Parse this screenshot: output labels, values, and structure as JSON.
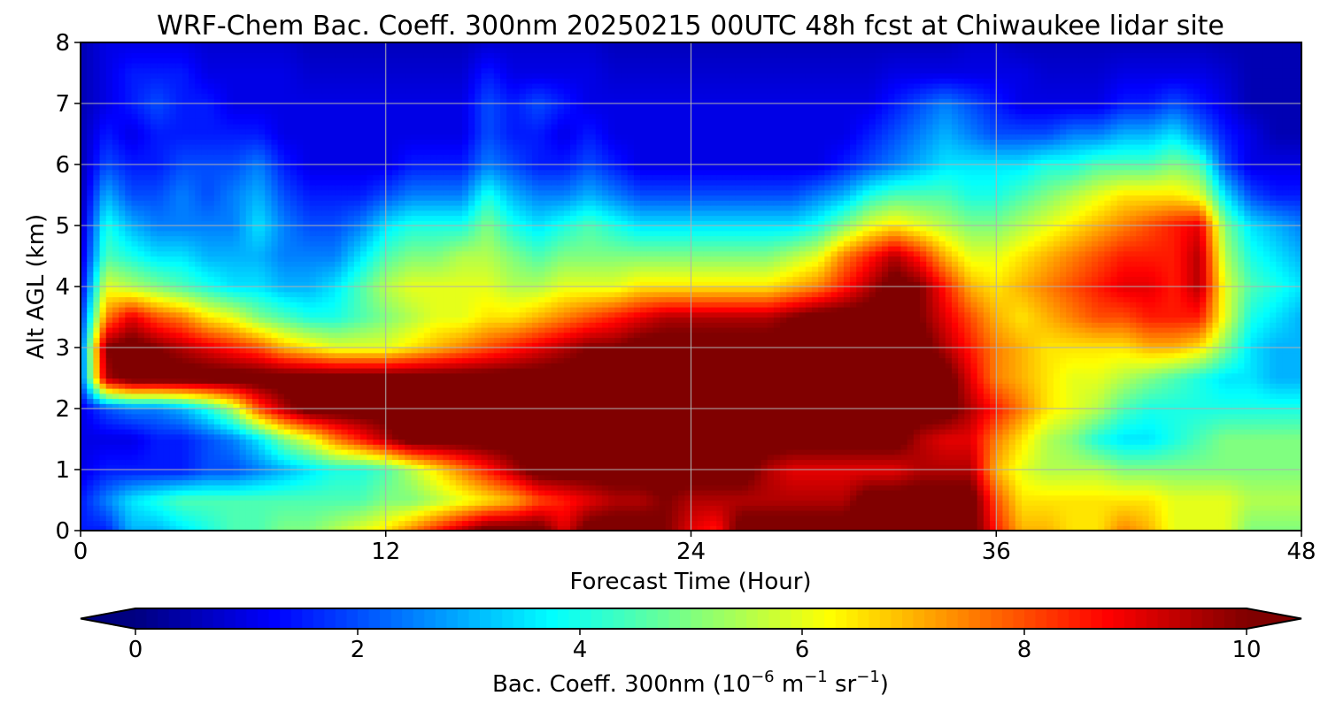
{
  "chart_data": {
    "type": "heatmap",
    "title": "WRF-Chem Bac. Coeff. 300nm  20250215 00UTC 48h fcst at Chiwaukee lidar site",
    "xlabel": "Forecast Time (Hour)",
    "ylabel": "Alt AGL (km)",
    "xlim": [
      0,
      48
    ],
    "ylim": [
      0,
      8
    ],
    "x_ticks": [
      "0",
      "12",
      "24",
      "36",
      "48"
    ],
    "x_tick_values": [
      0,
      12,
      24,
      36,
      48
    ],
    "y_ticks": [
      "0",
      "1",
      "2",
      "3",
      "4",
      "5",
      "6",
      "7",
      "8"
    ],
    "y_tick_values": [
      0,
      1,
      2,
      3,
      4,
      5,
      6,
      7,
      8
    ],
    "grid": true,
    "colormap": "jet",
    "colorbar": {
      "label_main": "Bac. Coeff. 300nm  (10",
      "label_exp1": "−6",
      "label_mid": " m",
      "label_exp2": "−1",
      "label_mid2": " sr",
      "label_exp3": "−1",
      "label_end": ")",
      "range": [
        0,
        10
      ],
      "extend": "both",
      "ticks": [
        "0",
        "2",
        "4",
        "6",
        "8",
        "10"
      ],
      "tick_values": [
        0,
        2,
        4,
        6,
        8,
        10
      ]
    },
    "x": [
      0,
      1,
      2,
      3,
      4,
      5,
      6,
      7,
      8,
      9,
      10,
      11,
      12,
      13,
      14,
      15,
      16,
      17,
      18,
      19,
      20,
      21,
      22,
      23,
      24,
      25,
      26,
      27,
      28,
      29,
      30,
      31,
      32,
      33,
      34,
      35,
      36,
      37,
      38,
      39,
      40,
      41,
      42,
      43,
      44,
      45,
      46,
      47,
      48
    ],
    "y": [
      0.0,
      0.5,
      1.0,
      1.5,
      2.0,
      2.5,
      3.0,
      3.5,
      4.0,
      4.5,
      5.0,
      5.5,
      6.0,
      6.5,
      7.0,
      7.5,
      8.0
    ],
    "z": [
      [
        1.5,
        1.5,
        3.0,
        3.0,
        3.5,
        4.0,
        4.5,
        4.5,
        5.0,
        5.0,
        5.5,
        6.0,
        6.5,
        7.5,
        8.5,
        9.5,
        10.5,
        10.5,
        10.5,
        9.0,
        10.5,
        10.5,
        10.5,
        10.0,
        9.0,
        8.5,
        10.5,
        10.5,
        10.5,
        10.5,
        10.5,
        10.5,
        10.5,
        10.5,
        10.5,
        10.5,
        8.5,
        7.0,
        7.0,
        6.5,
        6.5,
        7.5,
        7.0,
        6.0,
        6.0,
        6.0,
        5.0,
        5.0,
        5.0
      ],
      [
        1.5,
        2.5,
        3.5,
        4.0,
        4.5,
        4.5,
        4.5,
        4.5,
        4.5,
        4.5,
        4.5,
        4.5,
        5.0,
        5.0,
        5.5,
        6.0,
        6.5,
        7.0,
        8.0,
        8.5,
        9.0,
        9.5,
        9.5,
        10.0,
        9.5,
        9.5,
        9.5,
        9.5,
        9.5,
        9.5,
        9.5,
        10.5,
        10.5,
        10.5,
        10.5,
        10.5,
        8.0,
        6.5,
        6.5,
        6.5,
        6.5,
        6.5,
        6.5,
        6.0,
        6.0,
        6.0,
        5.5,
        5.5,
        5.5
      ],
      [
        1.0,
        1.5,
        1.5,
        1.5,
        1.5,
        2.0,
        2.0,
        2.5,
        3.0,
        3.5,
        4.0,
        4.0,
        4.5,
        5.5,
        6.5,
        7.5,
        8.5,
        9.5,
        10.5,
        10.5,
        10.5,
        10.5,
        10.5,
        10.5,
        10.5,
        10.5,
        10.5,
        9.5,
        9.0,
        9.0,
        9.0,
        9.0,
        9.0,
        9.5,
        9.5,
        9.5,
        7.0,
        6.0,
        5.5,
        5.5,
        5.5,
        5.0,
        5.0,
        5.0,
        5.0,
        5.0,
        5.0,
        5.0,
        5.0
      ],
      [
        1.0,
        1.0,
        1.0,
        1.5,
        1.5,
        2.0,
        2.5,
        3.5,
        5.0,
        6.0,
        7.5,
        8.5,
        9.5,
        10.5,
        10.5,
        10.5,
        10.5,
        10.5,
        10.5,
        10.5,
        10.5,
        10.5,
        10.5,
        10.5,
        10.5,
        10.5,
        10.5,
        10.5,
        10.5,
        10.5,
        10.5,
        10.5,
        10.5,
        9.5,
        9.0,
        9.0,
        7.5,
        6.5,
        5.5,
        5.0,
        4.0,
        3.5,
        3.5,
        4.0,
        4.5,
        5.0,
        5.0,
        5.0,
        5.0
      ],
      [
        1.0,
        2.0,
        2.5,
        2.5,
        3.0,
        4.0,
        5.5,
        8.0,
        9.5,
        10.5,
        10.5,
        10.5,
        10.5,
        10.5,
        10.5,
        10.5,
        10.5,
        10.5,
        10.5,
        10.5,
        10.5,
        10.5,
        10.5,
        10.5,
        10.5,
        10.5,
        10.5,
        10.5,
        10.5,
        10.5,
        10.5,
        10.5,
        10.5,
        10.5,
        10.5,
        9.5,
        8.5,
        7.5,
        6.5,
        6.0,
        5.5,
        4.5,
        4.0,
        4.0,
        4.0,
        4.0,
        4.0,
        4.0,
        4.0
      ],
      [
        2.0,
        9.5,
        10.5,
        10.5,
        10.5,
        10.5,
        10.5,
        10.5,
        10.5,
        10.5,
        10.5,
        10.5,
        10.5,
        10.5,
        10.5,
        10.5,
        10.5,
        10.5,
        10.5,
        10.5,
        10.5,
        10.5,
        10.5,
        10.5,
        10.5,
        10.5,
        10.5,
        10.5,
        10.5,
        10.5,
        10.5,
        10.5,
        10.5,
        10.5,
        10.5,
        9.0,
        7.5,
        7.0,
        6.5,
        6.0,
        6.0,
        5.5,
        5.0,
        4.5,
        4.0,
        3.5,
        3.5,
        3.0,
        3.0
      ],
      [
        2.0,
        10.0,
        10.5,
        10.0,
        9.5,
        9.0,
        8.5,
        8.0,
        7.0,
        6.5,
        6.0,
        6.0,
        6.0,
        6.5,
        7.0,
        7.5,
        8.0,
        8.5,
        9.0,
        9.5,
        10.0,
        10.0,
        10.5,
        10.5,
        10.5,
        10.5,
        10.5,
        10.5,
        10.5,
        10.5,
        10.5,
        10.5,
        10.5,
        10.5,
        9.5,
        8.5,
        7.5,
        7.0,
        6.5,
        6.5,
        6.5,
        6.5,
        7.0,
        7.0,
        6.5,
        5.0,
        3.5,
        3.0,
        3.0
      ],
      [
        1.5,
        7.5,
        9.0,
        8.0,
        7.5,
        6.5,
        6.0,
        5.0,
        4.5,
        4.0,
        4.0,
        4.5,
        5.0,
        5.5,
        6.0,
        6.0,
        6.5,
        6.5,
        7.0,
        7.5,
        8.0,
        8.5,
        9.0,
        9.5,
        9.5,
        9.5,
        9.5,
        9.5,
        10.0,
        10.5,
        10.5,
        10.5,
        10.5,
        10.0,
        9.0,
        8.0,
        7.0,
        6.5,
        7.0,
        7.5,
        8.0,
        8.0,
        8.5,
        8.5,
        8.5,
        6.0,
        4.0,
        3.5,
        3.0
      ],
      [
        1.0,
        6.0,
        5.5,
        5.0,
        4.5,
        4.0,
        3.5,
        3.5,
        3.0,
        3.0,
        3.5,
        4.5,
        5.5,
        6.0,
        6.0,
        6.0,
        6.0,
        5.5,
        5.5,
        6.0,
        6.0,
        6.0,
        6.5,
        6.5,
        6.5,
        6.5,
        6.5,
        6.5,
        7.0,
        7.5,
        8.5,
        9.5,
        10.5,
        10.0,
        8.5,
        7.0,
        6.5,
        7.0,
        7.5,
        8.0,
        8.5,
        9.0,
        9.0,
        8.5,
        9.5,
        6.0,
        4.5,
        4.0,
        3.5
      ],
      [
        0.8,
        4.5,
        4.0,
        3.5,
        3.5,
        3.0,
        3.0,
        3.0,
        2.5,
        2.5,
        2.5,
        3.5,
        4.5,
        5.0,
        5.0,
        5.5,
        5.5,
        5.0,
        4.5,
        5.0,
        5.0,
        5.0,
        5.0,
        5.0,
        5.0,
        5.0,
        5.0,
        5.0,
        5.5,
        6.0,
        7.5,
        8.5,
        9.5,
        8.5,
        7.0,
        6.0,
        6.0,
        6.5,
        7.0,
        7.5,
        8.0,
        8.5,
        8.5,
        8.5,
        9.5,
        5.5,
        4.0,
        3.5,
        3.0
      ],
      [
        0.6,
        4.0,
        3.0,
        2.5,
        2.5,
        2.5,
        2.5,
        3.5,
        2.5,
        2.0,
        2.0,
        2.5,
        3.5,
        4.0,
        4.0,
        4.0,
        5.0,
        4.0,
        3.5,
        4.0,
        4.5,
        4.0,
        3.5,
        3.5,
        3.5,
        3.5,
        3.5,
        3.5,
        3.5,
        4.0,
        5.0,
        6.0,
        6.5,
        6.0,
        5.5,
        5.0,
        5.0,
        5.5,
        6.0,
        6.5,
        7.0,
        7.5,
        8.0,
        8.5,
        9.0,
        5.0,
        3.5,
        3.0,
        2.5
      ],
      [
        0.5,
        3.0,
        2.0,
        2.0,
        2.5,
        2.0,
        2.5,
        3.0,
        2.0,
        1.5,
        1.5,
        1.5,
        2.0,
        2.5,
        2.5,
        2.5,
        4.0,
        3.0,
        2.5,
        2.5,
        3.0,
        2.5,
        2.0,
        2.0,
        2.0,
        2.0,
        2.0,
        2.0,
        2.0,
        2.5,
        3.0,
        4.0,
        4.5,
        4.5,
        4.5,
        4.0,
        4.0,
        4.5,
        5.0,
        5.5,
        6.0,
        6.5,
        6.5,
        6.5,
        6.0,
        3.5,
        2.0,
        1.5,
        1.5
      ],
      [
        0.5,
        2.0,
        1.5,
        1.5,
        2.0,
        2.0,
        2.0,
        2.5,
        1.5,
        1.0,
        1.0,
        1.0,
        1.0,
        1.5,
        1.5,
        1.5,
        2.5,
        2.0,
        1.5,
        1.5,
        2.0,
        1.5,
        1.0,
        1.0,
        1.0,
        1.0,
        1.0,
        1.0,
        1.0,
        1.0,
        1.5,
        2.0,
        2.5,
        3.0,
        3.5,
        3.5,
        3.5,
        3.5,
        4.0,
        4.0,
        4.5,
        4.5,
        4.5,
        5.0,
        4.5,
        2.0,
        1.0,
        1.0,
        1.0
      ],
      [
        0.5,
        1.5,
        1.0,
        1.5,
        1.5,
        1.5,
        1.5,
        1.5,
        1.0,
        1.0,
        1.0,
        1.0,
        1.0,
        1.0,
        1.0,
        1.0,
        2.0,
        1.5,
        1.5,
        1.0,
        1.5,
        1.0,
        1.0,
        1.0,
        1.0,
        1.0,
        1.0,
        1.0,
        1.0,
        1.0,
        1.0,
        1.5,
        2.0,
        2.5,
        3.0,
        2.5,
        2.0,
        2.0,
        2.0,
        2.5,
        2.5,
        3.0,
        3.0,
        3.5,
        2.5,
        1.5,
        1.0,
        0.5,
        0.5
      ],
      [
        0.5,
        1.0,
        1.5,
        2.0,
        1.5,
        1.5,
        1.0,
        1.0,
        1.0,
        1.0,
        1.0,
        1.0,
        1.0,
        1.0,
        1.0,
        1.0,
        2.0,
        1.5,
        2.0,
        1.5,
        1.0,
        1.0,
        1.0,
        1.0,
        1.0,
        1.0,
        1.0,
        1.0,
        1.0,
        1.0,
        1.0,
        1.0,
        1.5,
        2.0,
        2.5,
        2.0,
        1.5,
        1.0,
        1.0,
        1.0,
        1.0,
        1.5,
        1.5,
        2.0,
        1.5,
        1.0,
        0.5,
        0.5,
        0.5
      ],
      [
        0.5,
        1.0,
        1.5,
        1.5,
        1.5,
        1.0,
        1.0,
        1.0,
        1.0,
        0.8,
        0.8,
        0.8,
        0.8,
        0.8,
        0.8,
        0.8,
        1.5,
        1.0,
        1.0,
        1.0,
        1.0,
        0.8,
        0.8,
        0.8,
        0.8,
        0.8,
        0.8,
        0.8,
        0.8,
        0.8,
        0.8,
        0.8,
        1.0,
        1.0,
        1.0,
        1.0,
        1.0,
        1.0,
        0.8,
        0.8,
        0.8,
        1.0,
        1.0,
        1.0,
        1.0,
        0.8,
        0.5,
        0.5,
        0.5
      ],
      [
        0.5,
        1.0,
        1.0,
        1.0,
        1.0,
        0.8,
        0.8,
        0.8,
        0.8,
        0.6,
        0.6,
        0.6,
        0.6,
        0.6,
        0.6,
        0.6,
        0.8,
        0.8,
        0.8,
        0.8,
        0.8,
        0.6,
        0.6,
        0.6,
        0.6,
        0.6,
        0.6,
        0.6,
        0.6,
        0.6,
        0.6,
        0.6,
        0.6,
        0.6,
        0.6,
        0.8,
        0.8,
        0.6,
        0.6,
        0.6,
        0.6,
        0.6,
        0.6,
        0.6,
        0.6,
        0.5,
        0.5,
        0.5,
        0.5
      ]
    ]
  }
}
